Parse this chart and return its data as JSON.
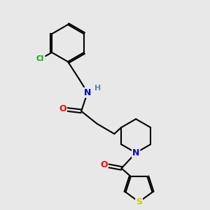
{
  "background_color": "#e8e8e8",
  "bond_color": "#000000",
  "atom_colors": {
    "N": "#0000cc",
    "O": "#ff0000",
    "S": "#cccc00",
    "Cl": "#00aa00",
    "H": "#5588aa",
    "C": "#000000"
  },
  "figsize": [
    3.0,
    3.0
  ],
  "dpi": 100
}
